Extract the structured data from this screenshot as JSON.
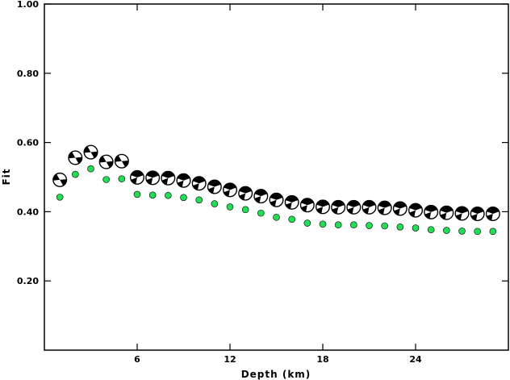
{
  "chart_data": {
    "type": "scatter",
    "title": "",
    "xlabel": "Depth (km)",
    "ylabel": "Fit",
    "xlim": [
      0,
      30
    ],
    "ylim": [
      0.0,
      1.0
    ],
    "x_ticks": [
      6,
      12,
      18,
      24
    ],
    "x_tick_labels": [
      "6",
      "12",
      "18",
      "24"
    ],
    "y_ticks": [
      0.2,
      0.4,
      0.6,
      0.8,
      1.0
    ],
    "y_tick_labels": [
      "0.20",
      "0.40",
      "0.60",
      "0.80",
      "1.00"
    ],
    "grid": false,
    "legend": "none",
    "series": [
      {
        "marker": "focal-mechanism beachball",
        "color": "#000000",
        "x": [
          1,
          2,
          3,
          4,
          5,
          6,
          7,
          8,
          9,
          10,
          11,
          12,
          13,
          14,
          15,
          16,
          17,
          18,
          19,
          20,
          21,
          22,
          23,
          24,
          25,
          26,
          27,
          28,
          29
        ],
        "values": [
          0.492,
          0.556,
          0.572,
          0.544,
          0.546,
          0.499,
          0.498,
          0.497,
          0.49,
          0.482,
          0.472,
          0.463,
          0.453,
          0.445,
          0.434,
          0.427,
          0.419,
          0.414,
          0.413,
          0.413,
          0.413,
          0.411,
          0.409,
          0.404,
          0.399,
          0.397,
          0.395,
          0.394,
          0.394
        ]
      },
      {
        "marker": "filled circle",
        "color": "#22dd55",
        "x": [
          1,
          2,
          3,
          4,
          5,
          6,
          7,
          8,
          9,
          10,
          11,
          12,
          13,
          14,
          15,
          16,
          17,
          18,
          19,
          20,
          21,
          22,
          23,
          24,
          25,
          26,
          27,
          28,
          29
        ],
        "values": [
          0.442,
          0.508,
          0.524,
          0.493,
          0.495,
          0.45,
          0.448,
          0.447,
          0.441,
          0.434,
          0.423,
          0.414,
          0.406,
          0.396,
          0.384,
          0.378,
          0.367,
          0.364,
          0.362,
          0.362,
          0.36,
          0.359,
          0.356,
          0.353,
          0.348,
          0.346,
          0.344,
          0.343,
          0.343
        ]
      }
    ]
  }
}
